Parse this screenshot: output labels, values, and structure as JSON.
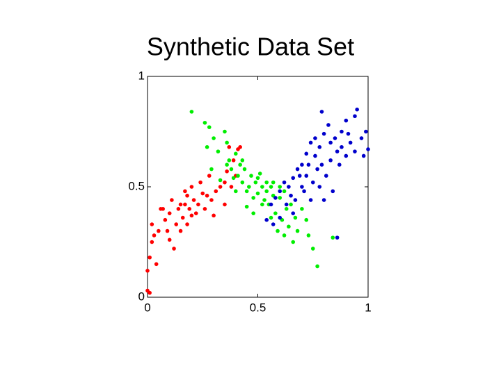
{
  "chart_data": {
    "type": "scatter",
    "title": "Synthetic Data Set",
    "xlim": [
      0,
      1
    ],
    "ylim": [
      0,
      1
    ],
    "xticks": [
      0,
      0.5,
      1
    ],
    "yticks": [
      0,
      0.5,
      1
    ],
    "grid": false,
    "series": [
      {
        "color": "#ff0000",
        "x": [
          0.0,
          0.01,
          0.0,
          0.01,
          0.02,
          0.02,
          0.03,
          0.05,
          0.06,
          0.07,
          0.08,
          0.09,
          0.1,
          0.11,
          0.12,
          0.13,
          0.14,
          0.15,
          0.16,
          0.17,
          0.18,
          0.19,
          0.2,
          0.21,
          0.22,
          0.23,
          0.24,
          0.25,
          0.26,
          0.27,
          0.28,
          0.29,
          0.3,
          0.31,
          0.33,
          0.35,
          0.36,
          0.38,
          0.39,
          0.4,
          0.41,
          0.42,
          0.37,
          0.35,
          0.04,
          0.15,
          0.18,
          0.2,
          0.1,
          0.17
        ],
        "values": [
          0.03,
          0.02,
          0.12,
          0.18,
          0.25,
          0.33,
          0.28,
          0.3,
          0.4,
          0.4,
          0.35,
          0.3,
          0.38,
          0.44,
          0.22,
          0.33,
          0.4,
          0.42,
          0.36,
          0.48,
          0.46,
          0.4,
          0.5,
          0.44,
          0.38,
          0.42,
          0.52,
          0.47,
          0.4,
          0.46,
          0.55,
          0.44,
          0.37,
          0.48,
          0.5,
          0.52,
          0.57,
          0.5,
          0.62,
          0.55,
          0.67,
          0.68,
          0.68,
          0.42,
          0.15,
          0.3,
          0.33,
          0.37,
          0.26,
          0.42
        ]
      },
      {
        "color": "#00ee00",
        "x": [
          0.2,
          0.26,
          0.28,
          0.27,
          0.29,
          0.3,
          0.32,
          0.35,
          0.36,
          0.37,
          0.38,
          0.4,
          0.41,
          0.42,
          0.43,
          0.44,
          0.45,
          0.46,
          0.47,
          0.48,
          0.49,
          0.5,
          0.51,
          0.52,
          0.53,
          0.54,
          0.55,
          0.56,
          0.57,
          0.58,
          0.59,
          0.6,
          0.61,
          0.62,
          0.63,
          0.64,
          0.65,
          0.66,
          0.67,
          0.68,
          0.7,
          0.72,
          0.73,
          0.75,
          0.77,
          0.84,
          0.43,
          0.39,
          0.33,
          0.36,
          0.5,
          0.54,
          0.6,
          0.45,
          0.48,
          0.52,
          0.56,
          0.4,
          0.62,
          0.57
        ],
        "values": [
          0.84,
          0.79,
          0.77,
          0.68,
          0.58,
          0.72,
          0.66,
          0.75,
          0.7,
          0.62,
          0.58,
          0.65,
          0.55,
          0.6,
          0.52,
          0.58,
          0.48,
          0.5,
          0.55,
          0.45,
          0.52,
          0.47,
          0.56,
          0.5,
          0.44,
          0.48,
          0.42,
          0.5,
          0.46,
          0.38,
          0.3,
          0.45,
          0.35,
          0.28,
          0.4,
          0.32,
          0.42,
          0.25,
          0.36,
          0.3,
          0.4,
          0.35,
          0.28,
          0.22,
          0.14,
          0.27,
          0.62,
          0.54,
          0.53,
          0.6,
          0.54,
          0.52,
          0.5,
          0.41,
          0.38,
          0.42,
          0.36,
          0.48,
          0.48,
          0.52
        ]
      },
      {
        "color": "#0000cc",
        "x": [
          0.79,
          0.95,
          0.94,
          0.9,
          0.88,
          0.85,
          0.83,
          0.8,
          0.78,
          0.76,
          0.74,
          0.72,
          0.7,
          0.68,
          0.66,
          0.64,
          0.62,
          0.6,
          0.58,
          0.56,
          0.54,
          0.57,
          0.6,
          0.63,
          0.65,
          0.67,
          0.7,
          0.72,
          0.75,
          0.77,
          0.79,
          0.81,
          0.83,
          0.86,
          0.88,
          0.9,
          0.92,
          0.94,
          0.97,
          0.99,
          1.0,
          0.98,
          0.84,
          0.8,
          0.86,
          0.78,
          0.73,
          0.69,
          0.82,
          0.87,
          0.91,
          0.76,
          0.71,
          0.66,
          0.74
        ],
        "values": [
          0.84,
          0.85,
          0.82,
          0.8,
          0.75,
          0.72,
          0.7,
          0.74,
          0.68,
          0.72,
          0.7,
          0.65,
          0.6,
          0.58,
          0.54,
          0.5,
          0.52,
          0.48,
          0.45,
          0.42,
          0.35,
          0.33,
          0.36,
          0.42,
          0.46,
          0.44,
          0.5,
          0.55,
          0.52,
          0.58,
          0.6,
          0.55,
          0.62,
          0.66,
          0.68,
          0.64,
          0.7,
          0.66,
          0.72,
          0.75,
          0.67,
          0.64,
          0.48,
          0.44,
          0.27,
          0.5,
          0.6,
          0.55,
          0.78,
          0.6,
          0.74,
          0.64,
          0.48,
          0.38,
          0.44
        ]
      }
    ]
  }
}
